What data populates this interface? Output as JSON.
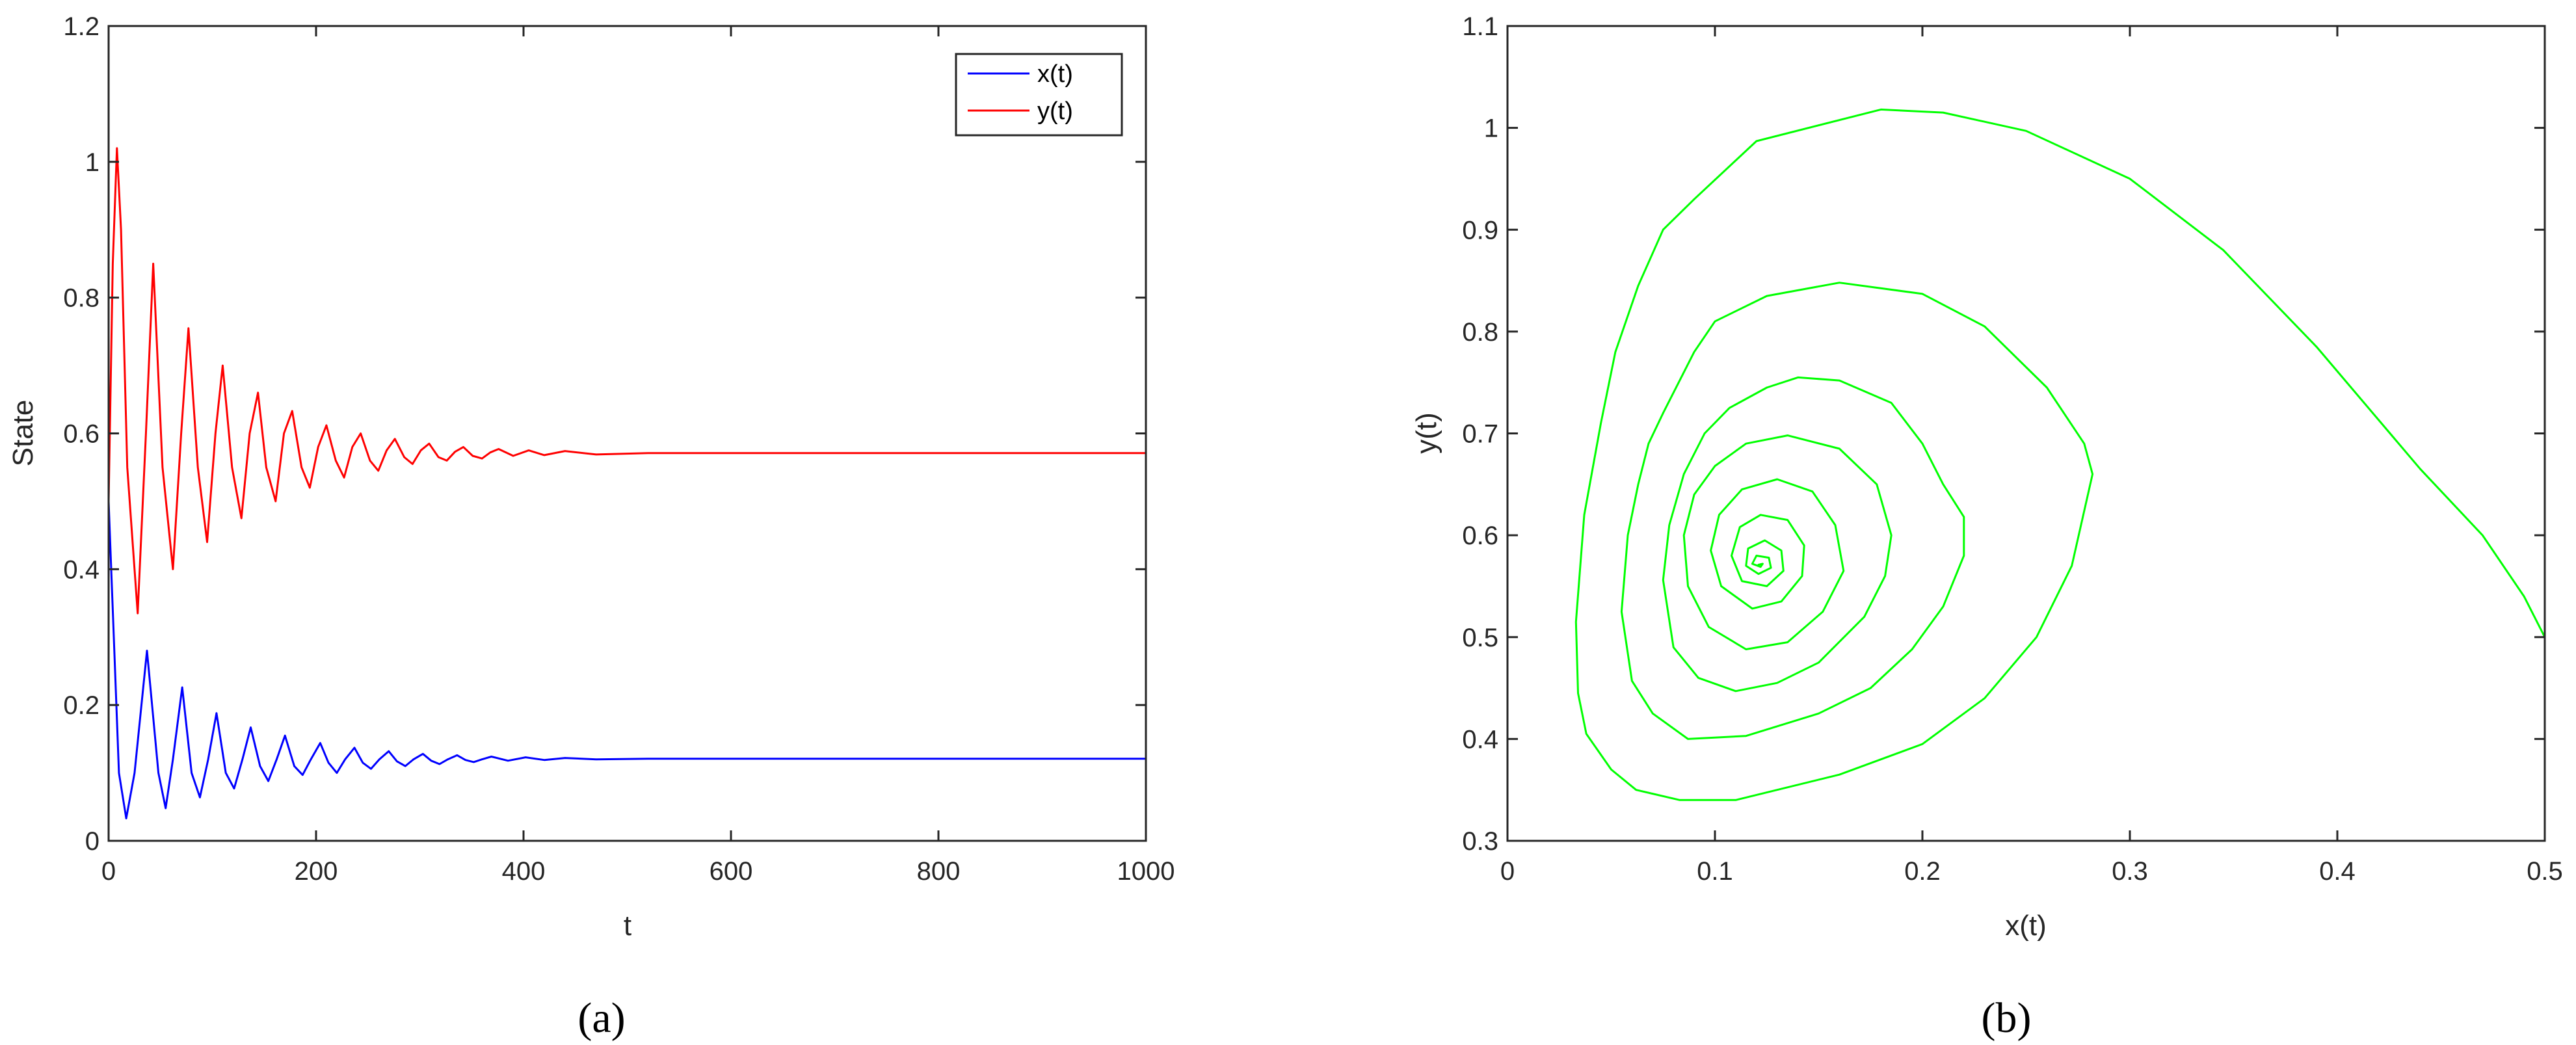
{
  "chart_data": [
    {
      "type": "line",
      "caption": "(a)",
      "xlabel": "t",
      "ylabel": "State",
      "xlim": [
        0,
        1000
      ],
      "ylim": [
        0,
        1.2
      ],
      "x_ticks": [
        0,
        200,
        400,
        600,
        800,
        1000
      ],
      "x_tick_labels": [
        "0",
        "200",
        "400",
        "600",
        "800",
        "1000"
      ],
      "y_ticks": [
        0,
        0.2,
        0.4,
        0.6,
        0.8,
        1,
        1.2
      ],
      "y_tick_labels": [
        "0",
        "0.2",
        "0.4",
        "0.6",
        "0.8",
        "1",
        "1.2"
      ],
      "grid": false,
      "legend_position": "top-right",
      "series": [
        {
          "name": "x(t)",
          "color": "#0000ff",
          "points": [
            [
              0,
              0.5
            ],
            [
              5,
              0.3
            ],
            [
              10,
              0.1
            ],
            [
              17,
              0.033
            ],
            [
              25,
              0.1
            ],
            [
              37,
              0.28
            ],
            [
              48,
              0.1
            ],
            [
              55,
              0.048
            ],
            [
              62,
              0.12
            ],
            [
              71,
              0.226
            ],
            [
              80,
              0.1
            ],
            [
              88,
              0.064
            ],
            [
              96,
              0.12
            ],
            [
              104,
              0.188
            ],
            [
              113,
              0.1
            ],
            [
              121,
              0.077
            ],
            [
              129,
              0.12
            ],
            [
              137,
              0.167
            ],
            [
              146,
              0.11
            ],
            [
              154,
              0.088
            ],
            [
              162,
              0.12
            ],
            [
              170,
              0.155
            ],
            [
              179,
              0.11
            ],
            [
              187,
              0.097
            ],
            [
              195,
              0.12
            ],
            [
              204,
              0.144
            ],
            [
              212,
              0.115
            ],
            [
              220,
              0.1
            ],
            [
              228,
              0.12
            ],
            [
              237,
              0.137
            ],
            [
              245,
              0.115
            ],
            [
              253,
              0.106
            ],
            [
              261,
              0.12
            ],
            [
              270,
              0.132
            ],
            [
              278,
              0.117
            ],
            [
              286,
              0.11
            ],
            [
              294,
              0.12
            ],
            [
              303,
              0.128
            ],
            [
              311,
              0.118
            ],
            [
              319,
              0.113
            ],
            [
              327,
              0.12
            ],
            [
              336,
              0.126
            ],
            [
              344,
              0.119
            ],
            [
              352,
              0.116
            ],
            [
              360,
              0.12
            ],
            [
              369,
              0.124
            ],
            [
              385,
              0.118
            ],
            [
              402,
              0.123
            ],
            [
              420,
              0.119
            ],
            [
              440,
              0.122
            ],
            [
              470,
              0.12
            ],
            [
              520,
              0.121
            ],
            [
              1000,
              0.121
            ]
          ]
        },
        {
          "name": "y(t)",
          "color": "#ff0000",
          "points": [
            [
              0,
              0.5
            ],
            [
              4,
              0.85
            ],
            [
              8,
              1.02
            ],
            [
              12,
              0.9
            ],
            [
              18,
              0.55
            ],
            [
              28,
              0.335
            ],
            [
              36,
              0.6
            ],
            [
              43,
              0.85
            ],
            [
              52,
              0.55
            ],
            [
              62,
              0.4
            ],
            [
              70,
              0.6
            ],
            [
              77,
              0.755
            ],
            [
              86,
              0.55
            ],
            [
              95,
              0.44
            ],
            [
              103,
              0.6
            ],
            [
              110,
              0.7
            ],
            [
              119,
              0.55
            ],
            [
              128,
              0.475
            ],
            [
              136,
              0.6
            ],
            [
              144,
              0.66
            ],
            [
              152,
              0.55
            ],
            [
              161,
              0.5
            ],
            [
              169,
              0.6
            ],
            [
              177,
              0.633
            ],
            [
              186,
              0.55
            ],
            [
              194,
              0.52
            ],
            [
              202,
              0.58
            ],
            [
              210,
              0.612
            ],
            [
              219,
              0.56
            ],
            [
              227,
              0.535
            ],
            [
              235,
              0.58
            ],
            [
              243,
              0.6
            ],
            [
              252,
              0.56
            ],
            [
              260,
              0.545
            ],
            [
              268,
              0.575
            ],
            [
              276,
              0.592
            ],
            [
              285,
              0.565
            ],
            [
              293,
              0.555
            ],
            [
              301,
              0.575
            ],
            [
              309,
              0.585
            ],
            [
              318,
              0.565
            ],
            [
              326,
              0.56
            ],
            [
              334,
              0.573
            ],
            [
              342,
              0.58
            ],
            [
              351,
              0.567
            ],
            [
              360,
              0.563
            ],
            [
              368,
              0.572
            ],
            [
              376,
              0.577
            ],
            [
              390,
              0.567
            ],
            [
              405,
              0.575
            ],
            [
              420,
              0.568
            ],
            [
              440,
              0.574
            ],
            [
              470,
              0.569
            ],
            [
              520,
              0.571
            ],
            [
              1000,
              0.571
            ]
          ]
        }
      ]
    },
    {
      "type": "line",
      "caption": "(b)",
      "xlabel": "x(t)",
      "ylabel": "y(t)",
      "xlim": [
        0,
        0.5
      ],
      "ylim": [
        0.3,
        1.1
      ],
      "x_ticks": [
        0,
        0.1,
        0.2,
        0.3,
        0.4,
        0.5
      ],
      "x_tick_labels": [
        "0",
        "0.1",
        "0.2",
        "0.3",
        "0.4",
        "0.5"
      ],
      "y_ticks": [
        0.3,
        0.4,
        0.5,
        0.6,
        0.7,
        0.8,
        0.9,
        1,
        1.1
      ],
      "y_tick_labels": [
        "0.3",
        "0.4",
        "0.5",
        "0.6",
        "0.7",
        "0.8",
        "0.9",
        "1",
        "1.1"
      ],
      "grid": false,
      "series": [
        {
          "color": "#00ff00",
          "points": [
            [
              0.5,
              0.5
            ],
            [
              0.49,
              0.54
            ],
            [
              0.47,
              0.6
            ],
            [
              0.44,
              0.665
            ],
            [
              0.39,
              0.785
            ],
            [
              0.345,
              0.88
            ],
            [
              0.3,
              0.95
            ],
            [
              0.25,
              0.997
            ],
            [
              0.21,
              1.015
            ],
            [
              0.18,
              1.018
            ],
            [
              0.12,
              0.987
            ],
            [
              0.09,
              0.93
            ],
            [
              0.075,
              0.9
            ],
            [
              0.063,
              0.845
            ],
            [
              0.052,
              0.78
            ],
            [
              0.045,
              0.71
            ],
            [
              0.037,
              0.62
            ],
            [
              0.033,
              0.515
            ],
            [
              0.034,
              0.445
            ],
            [
              0.038,
              0.405
            ],
            [
              0.05,
              0.37
            ],
            [
              0.062,
              0.35
            ],
            [
              0.083,
              0.34
            ],
            [
              0.11,
              0.34
            ],
            [
              0.16,
              0.365
            ],
            [
              0.2,
              0.395
            ],
            [
              0.23,
              0.44
            ],
            [
              0.255,
              0.5
            ],
            [
              0.272,
              0.57
            ],
            [
              0.282,
              0.66
            ],
            [
              0.278,
              0.69
            ],
            [
              0.26,
              0.745
            ],
            [
              0.23,
              0.805
            ],
            [
              0.2,
              0.837
            ],
            [
              0.16,
              0.848
            ],
            [
              0.125,
              0.835
            ],
            [
              0.1,
              0.81
            ],
            [
              0.09,
              0.78
            ],
            [
              0.075,
              0.72
            ],
            [
              0.068,
              0.69
            ],
            [
              0.063,
              0.65
            ],
            [
              0.058,
              0.6
            ],
            [
              0.055,
              0.525
            ],
            [
              0.06,
              0.457
            ],
            [
              0.07,
              0.425
            ],
            [
              0.087,
              0.4
            ],
            [
              0.115,
              0.403
            ],
            [
              0.15,
              0.425
            ],
            [
              0.175,
              0.45
            ],
            [
              0.195,
              0.488
            ],
            [
              0.21,
              0.53
            ],
            [
              0.22,
              0.58
            ],
            [
              0.22,
              0.618
            ],
            [
              0.21,
              0.65
            ],
            [
              0.2,
              0.69
            ],
            [
              0.185,
              0.73
            ],
            [
              0.16,
              0.752
            ],
            [
              0.14,
              0.755
            ],
            [
              0.125,
              0.745
            ],
            [
              0.107,
              0.725
            ],
            [
              0.095,
              0.7
            ],
            [
              0.085,
              0.66
            ],
            [
              0.078,
              0.61
            ],
            [
              0.075,
              0.556
            ],
            [
              0.08,
              0.49
            ],
            [
              0.092,
              0.46
            ],
            [
              0.11,
              0.447
            ],
            [
              0.13,
              0.455
            ],
            [
              0.15,
              0.475
            ],
            [
              0.172,
              0.52
            ],
            [
              0.182,
              0.56
            ],
            [
              0.185,
              0.6
            ],
            [
              0.178,
              0.65
            ],
            [
              0.16,
              0.685
            ],
            [
              0.135,
              0.698
            ],
            [
              0.115,
              0.69
            ],
            [
              0.1,
              0.668
            ],
            [
              0.09,
              0.64
            ],
            [
              0.085,
              0.6
            ],
            [
              0.087,
              0.55
            ],
            [
              0.097,
              0.51
            ],
            [
              0.115,
              0.488
            ],
            [
              0.135,
              0.495
            ],
            [
              0.152,
              0.525
            ],
            [
              0.162,
              0.565
            ],
            [
              0.158,
              0.61
            ],
            [
              0.147,
              0.643
            ],
            [
              0.13,
              0.655
            ],
            [
              0.113,
              0.645
            ],
            [
              0.102,
              0.62
            ],
            [
              0.098,
              0.585
            ],
            [
              0.103,
              0.55
            ],
            [
              0.118,
              0.528
            ],
            [
              0.132,
              0.535
            ],
            [
              0.142,
              0.56
            ],
            [
              0.143,
              0.59
            ],
            [
              0.135,
              0.615
            ],
            [
              0.122,
              0.62
            ],
            [
              0.112,
              0.608
            ],
            [
              0.108,
              0.58
            ],
            [
              0.113,
              0.555
            ],
            [
              0.125,
              0.55
            ],
            [
              0.133,
              0.565
            ],
            [
              0.132,
              0.585
            ],
            [
              0.124,
              0.595
            ],
            [
              0.116,
              0.587
            ],
            [
              0.115,
              0.57
            ],
            [
              0.121,
              0.562
            ],
            [
              0.127,
              0.568
            ],
            [
              0.126,
              0.578
            ],
            [
              0.12,
              0.58
            ],
            [
              0.118,
              0.572
            ],
            [
              0.122,
              0.569
            ],
            [
              0.123,
              0.572
            ],
            [
              0.121,
              0.571
            ]
          ]
        }
      ]
    }
  ]
}
